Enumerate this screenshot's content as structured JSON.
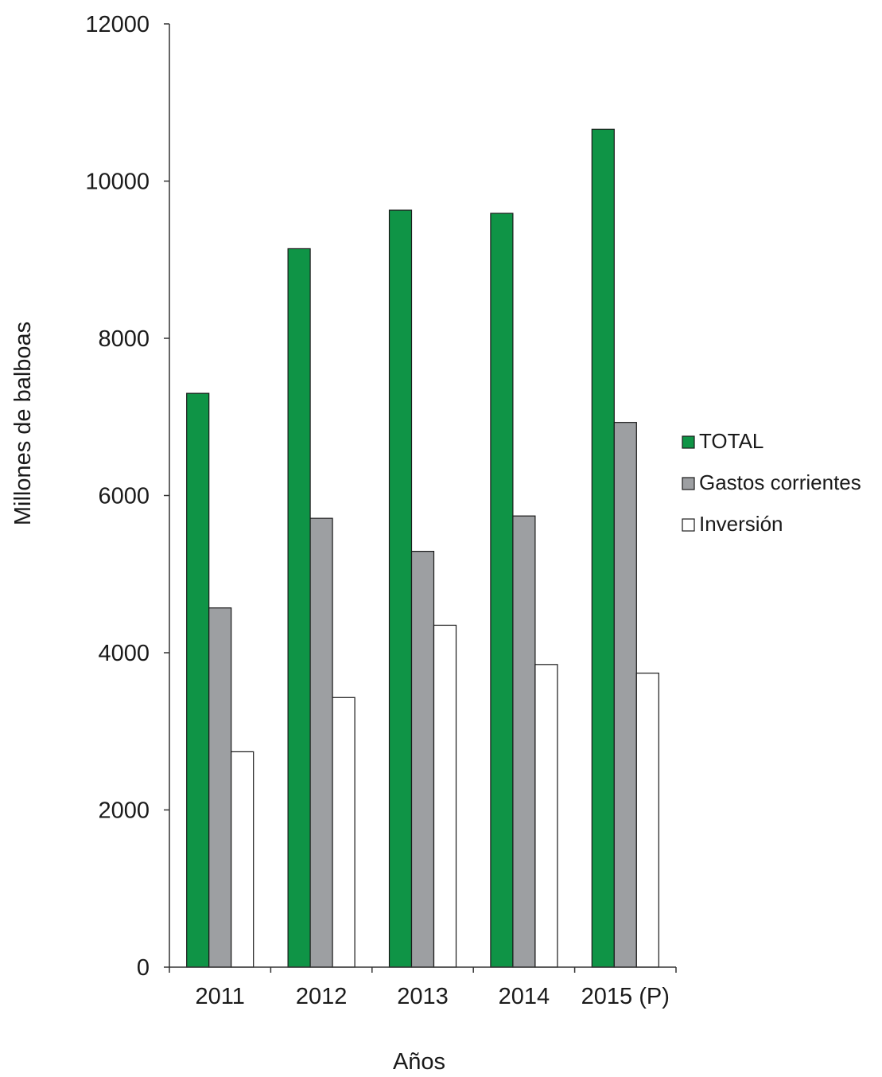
{
  "chart_data": {
    "type": "bar",
    "title": "",
    "xlabel": "Años",
    "ylabel": "Millones de balboas",
    "categories": [
      "2011",
      "2012",
      "2013",
      "2014",
      "2015 (P)"
    ],
    "ylim": [
      0,
      12000
    ],
    "yticks": [
      0,
      2000,
      4000,
      6000,
      8000,
      10000,
      12000
    ],
    "grid": false,
    "legend_position": "right",
    "series": [
      {
        "name": "TOTAL",
        "color": "#0f9446",
        "values": [
          7300,
          9140,
          9630,
          9590,
          10660
        ]
      },
      {
        "name": "Gastos corrientes",
        "color": "#9d9fa2",
        "values": [
          4570,
          5710,
          5290,
          5740,
          6930
        ]
      },
      {
        "name": "Inversión",
        "color": "#ffffff",
        "values": [
          2740,
          3430,
          4350,
          3850,
          3740
        ]
      }
    ]
  }
}
